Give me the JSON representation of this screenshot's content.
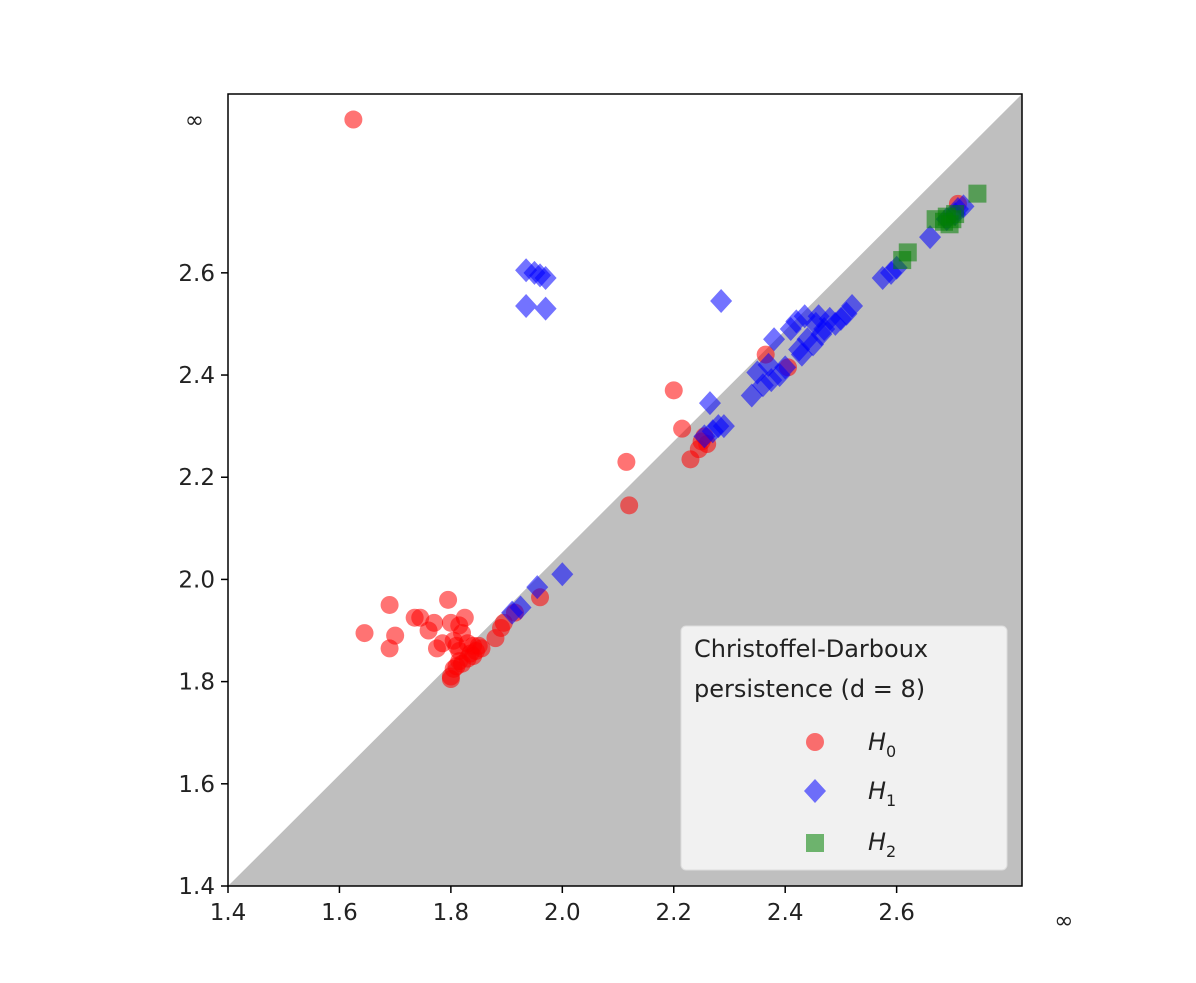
{
  "chart_data": {
    "type": "scatter",
    "title": "",
    "xlabel": "",
    "ylabel": "",
    "xlim": [
      1.4,
      2.825
    ],
    "ylim": [
      1.4,
      2.95
    ],
    "x_ticks": [
      1.4,
      1.6,
      1.8,
      2.0,
      2.2,
      2.4,
      2.6
    ],
    "x_tick_labels": [
      "1.4",
      "1.6",
      "1.8",
      "2.0",
      "2.2",
      "2.4",
      "2.6"
    ],
    "y_ticks": [
      1.4,
      1.6,
      1.8,
      2.0,
      2.2,
      2.4,
      2.6
    ],
    "y_tick_labels": [
      "1.4",
      "1.6",
      "1.8",
      "2.0",
      "2.2",
      "2.4",
      "2.6"
    ],
    "infinity_label": "∞",
    "infinity_value": 2.9,
    "grid": false,
    "diagonal_fill": "#bfbfbf",
    "legend": {
      "title": "Christoffel-Darboux persistence (d = 8)",
      "title_line1": "Christoffel-Darboux",
      "title_line2": "persistence (d = 8)",
      "location": "lower-right"
    },
    "series": [
      {
        "name": "H0",
        "label_main": "H",
        "label_sub": "0",
        "marker": "circle",
        "color": "#ff0000",
        "points": [
          [
            1.625,
            2.9
          ],
          [
            1.645,
            1.895
          ],
          [
            1.69,
            1.95
          ],
          [
            1.69,
            1.865
          ],
          [
            1.7,
            1.89
          ],
          [
            1.735,
            1.925
          ],
          [
            1.745,
            1.925
          ],
          [
            1.76,
            1.9
          ],
          [
            1.77,
            1.915
          ],
          [
            1.775,
            1.865
          ],
          [
            1.785,
            1.875
          ],
          [
            1.795,
            1.96
          ],
          [
            1.8,
            1.915
          ],
          [
            1.805,
            1.88
          ],
          [
            1.815,
            1.91
          ],
          [
            1.825,
            1.925
          ],
          [
            1.82,
            1.895
          ],
          [
            1.81,
            1.87
          ],
          [
            1.815,
            1.86
          ],
          [
            1.83,
            1.875
          ],
          [
            1.84,
            1.87
          ],
          [
            1.85,
            1.87
          ],
          [
            1.8,
            1.81
          ],
          [
            1.805,
            1.825
          ],
          [
            1.81,
            1.83
          ],
          [
            1.815,
            1.84
          ],
          [
            1.82,
            1.835
          ],
          [
            1.83,
            1.845
          ],
          [
            1.835,
            1.855
          ],
          [
            1.84,
            1.85
          ],
          [
            1.845,
            1.86
          ],
          [
            1.855,
            1.865
          ],
          [
            1.8,
            1.805
          ],
          [
            1.88,
            1.885
          ],
          [
            1.89,
            1.905
          ],
          [
            1.895,
            1.915
          ],
          [
            1.915,
            1.935
          ],
          [
            1.96,
            1.965
          ],
          [
            2.115,
            2.23
          ],
          [
            2.12,
            2.145
          ],
          [
            2.2,
            2.37
          ],
          [
            2.215,
            2.295
          ],
          [
            2.23,
            2.235
          ],
          [
            2.245,
            2.255
          ],
          [
            2.25,
            2.27
          ],
          [
            2.255,
            2.28
          ],
          [
            2.26,
            2.265
          ],
          [
            2.365,
            2.44
          ],
          [
            2.405,
            2.415
          ],
          [
            2.71,
            2.735
          ]
        ]
      },
      {
        "name": "H1",
        "label_main": "H",
        "label_sub": "1",
        "marker": "diamond",
        "color": "#0000ff",
        "points": [
          [
            1.935,
            2.605
          ],
          [
            1.95,
            2.6
          ],
          [
            1.96,
            2.595
          ],
          [
            1.97,
            2.59
          ],
          [
            1.935,
            2.535
          ],
          [
            1.97,
            2.53
          ],
          [
            2.285,
            2.545
          ],
          [
            1.91,
            1.935
          ],
          [
            1.925,
            1.945
          ],
          [
            1.955,
            1.985
          ],
          [
            2.0,
            2.01
          ],
          [
            2.255,
            2.28
          ],
          [
            2.265,
            2.345
          ],
          [
            2.27,
            2.29
          ],
          [
            2.28,
            2.3
          ],
          [
            2.29,
            2.3
          ],
          [
            2.34,
            2.36
          ],
          [
            2.35,
            2.405
          ],
          [
            2.36,
            2.38
          ],
          [
            2.37,
            2.42
          ],
          [
            2.375,
            2.39
          ],
          [
            2.38,
            2.47
          ],
          [
            2.39,
            2.4
          ],
          [
            2.4,
            2.415
          ],
          [
            2.41,
            2.49
          ],
          [
            2.42,
            2.505
          ],
          [
            2.425,
            2.45
          ],
          [
            2.43,
            2.44
          ],
          [
            2.435,
            2.515
          ],
          [
            2.44,
            2.47
          ],
          [
            2.45,
            2.46
          ],
          [
            2.455,
            2.5
          ],
          [
            2.46,
            2.515
          ],
          [
            2.465,
            2.48
          ],
          [
            2.47,
            2.49
          ],
          [
            2.48,
            2.51
          ],
          [
            2.49,
            2.5
          ],
          [
            2.5,
            2.51
          ],
          [
            2.51,
            2.52
          ],
          [
            2.52,
            2.535
          ],
          [
            2.575,
            2.59
          ],
          [
            2.59,
            2.6
          ],
          [
            2.6,
            2.61
          ],
          [
            2.66,
            2.67
          ],
          [
            2.69,
            2.705
          ],
          [
            2.705,
            2.715
          ],
          [
            2.71,
            2.725
          ],
          [
            2.72,
            2.73
          ]
        ]
      },
      {
        "name": "H2",
        "label_main": "H",
        "label_sub": "2",
        "marker": "square",
        "color": "#008000",
        "points": [
          [
            2.61,
            2.625
          ],
          [
            2.62,
            2.64
          ],
          [
            2.67,
            2.705
          ],
          [
            2.685,
            2.7
          ],
          [
            2.69,
            2.71
          ],
          [
            2.695,
            2.695
          ],
          [
            2.7,
            2.705
          ],
          [
            2.705,
            2.715
          ],
          [
            2.745,
            2.755
          ]
        ]
      }
    ]
  }
}
